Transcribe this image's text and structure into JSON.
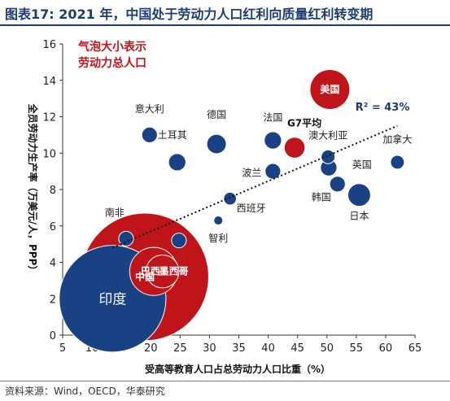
{
  "header": {
    "title": "图表17:  2021 年，中国处于劳动力人口红利向质量红利转变期"
  },
  "footer": {
    "source": "资料来源：Wind，OECD，华泰研究"
  },
  "colors": {
    "navy": "#1b4185",
    "red": "#c0141b",
    "title": "#1f3b73"
  },
  "chart_data": {
    "type": "scatter",
    "bubble": true,
    "xlabel": "受高等教育人口占总劳动力人口比重（%）",
    "ylabel": "全员劳动力生产率（万美元/人，PPP）",
    "xlim": [
      5,
      65
    ],
    "ylim": [
      0,
      16
    ],
    "xticks": [
      5,
      10,
      15,
      20,
      25,
      30,
      35,
      40,
      45,
      50,
      55,
      60,
      65
    ],
    "yticks": [
      0,
      2,
      4,
      6,
      8,
      10,
      12,
      14,
      16
    ],
    "legend_title": [
      "气泡大小表示",
      "劳动力总人口"
    ],
    "legend_example": {
      "label": "美国",
      "x": 50.5,
      "y": 13.5,
      "color": "red"
    },
    "trendline": {
      "style": "dotted",
      "x": [
        13.5,
        62
      ],
      "y": [
        4.8,
        11.5
      ],
      "r2_label": "R² = 43%"
    },
    "points": [
      {
        "label": "印度",
        "x": 13.5,
        "y": 2.0,
        "size": 420,
        "color": "navy"
      },
      {
        "label": "中国",
        "x": 19.0,
        "y": 3.2,
        "size": 600,
        "color": "red"
      },
      {
        "label": "巴西",
        "x": 20.5,
        "y": 3.5,
        "size": 85,
        "color": "red"
      },
      {
        "label": "墨西哥",
        "x": 22.0,
        "y": 3.5,
        "size": 40,
        "color": "red"
      },
      {
        "label": "南非",
        "x": 15.8,
        "y": 5.3,
        "size": 8,
        "color": "navy"
      },
      {
        "label": "",
        "x": 24.8,
        "y": 5.2,
        "size": 8,
        "color": "navy"
      },
      {
        "label": "智利",
        "x": 31.5,
        "y": 6.3,
        "size": 3,
        "color": "navy"
      },
      {
        "label": "",
        "x": 33.5,
        "y": 7.5,
        "size": 6,
        "color": "navy"
      },
      {
        "label": "西班牙",
        "x": 33.5,
        "y": 7.5,
        "size": 0,
        "color": "navy"
      },
      {
        "label": "土耳其",
        "x": 19.8,
        "y": 11.0,
        "size": 9,
        "color": "navy"
      },
      {
        "label": "意大利",
        "x": 19.8,
        "y": 11.0,
        "size": 0,
        "color": "navy"
      },
      {
        "label": "",
        "x": 24.5,
        "y": 9.5,
        "size": 11,
        "color": "navy"
      },
      {
        "label": "德国",
        "x": 31.2,
        "y": 10.5,
        "size": 14,
        "color": "navy"
      },
      {
        "label": "波兰",
        "x": 40.8,
        "y": 9.0,
        "size": 9,
        "color": "navy"
      },
      {
        "label": "法国",
        "x": 40.8,
        "y": 10.7,
        "size": 11,
        "color": "navy"
      },
      {
        "label": "G7平均",
        "x": 44.5,
        "y": 10.3,
        "size": 16,
        "color": "red"
      },
      {
        "label": "澳大利亚",
        "x": 50.2,
        "y": 9.8,
        "size": 7,
        "color": "navy"
      },
      {
        "label": "",
        "x": 50.3,
        "y": 9.2,
        "size": 10,
        "color": "navy"
      },
      {
        "label": "英国",
        "x": 51.8,
        "y": 8.3,
        "size": 9,
        "color": "navy"
      },
      {
        "label": "韩国",
        "x": 51.8,
        "y": 8.3,
        "size": 0,
        "color": "navy"
      },
      {
        "label": "日本",
        "x": 55.5,
        "y": 7.7,
        "size": 19,
        "color": "navy"
      },
      {
        "label": "加拿大",
        "x": 62.0,
        "y": 9.5,
        "size": 7,
        "color": "navy"
      }
    ]
  }
}
